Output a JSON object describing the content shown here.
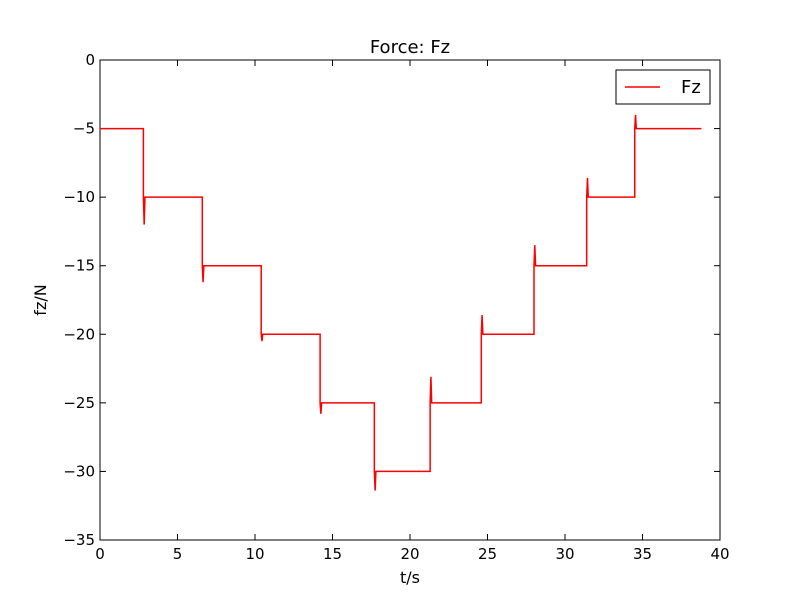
{
  "chart_data": {
    "type": "line",
    "title": "Force: Fz",
    "xlabel": "t/s",
    "ylabel": "fz/N",
    "xlim": [
      0,
      40
    ],
    "ylim": [
      -35,
      0
    ],
    "xticks": [
      0,
      5,
      10,
      15,
      20,
      25,
      30,
      35,
      40
    ],
    "yticks": [
      0,
      -5,
      -10,
      -15,
      -20,
      -25,
      -30,
      -35
    ],
    "xtick_labels": [
      "0",
      "5",
      "10",
      "15",
      "20",
      "25",
      "30",
      "35",
      "40"
    ],
    "ytick_labels": [
      "0",
      "−5",
      "−10",
      "−15",
      "−20",
      "−25",
      "−30",
      "−35"
    ],
    "grid": false,
    "legend": {
      "position": "top-right",
      "entries": [
        "Fz"
      ]
    },
    "series": [
      {
        "name": "Fz",
        "color": "#ff0000",
        "x": [
          0,
          2.8,
          2.8,
          2.85,
          2.9,
          6.6,
          6.6,
          6.65,
          6.7,
          10.4,
          10.4,
          10.45,
          10.5,
          14.2,
          14.2,
          14.25,
          14.3,
          17.7,
          17.7,
          17.75,
          17.8,
          21.3,
          21.3,
          21.35,
          21.4,
          24.6,
          24.6,
          24.65,
          24.7,
          28.0,
          28.0,
          28.05,
          28.1,
          31.4,
          31.4,
          31.45,
          31.5,
          34.5,
          34.5,
          34.55,
          34.6,
          38.8
        ],
        "y": [
          -5,
          -5,
          -10,
          -12,
          -10,
          -10,
          -15,
          -16.2,
          -15,
          -15,
          -20,
          -20.5,
          -20,
          -20,
          -25,
          -25.8,
          -25,
          -25,
          -30,
          -31.4,
          -30,
          -30,
          -25,
          -23.1,
          -25,
          -25,
          -20,
          -18.6,
          -20,
          -20,
          -15,
          -13.5,
          -15,
          -15,
          -10,
          -8.6,
          -10,
          -10,
          -5,
          -4,
          -5,
          -5
        ]
      }
    ]
  }
}
